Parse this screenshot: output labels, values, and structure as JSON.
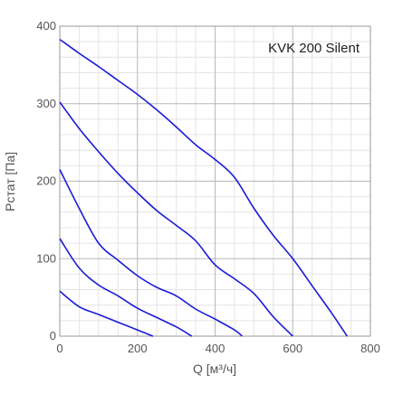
{
  "chart_data": {
    "type": "line",
    "title": "KVK 200 Silent",
    "xlabel": "Q [м³/ч]",
    "ylabel": "Pстат [Па]",
    "xlim": [
      0,
      800
    ],
    "ylim": [
      0,
      400
    ],
    "xticks": [
      0,
      200,
      400,
      600,
      800
    ],
    "yticks": [
      0,
      100,
      200,
      300,
      400
    ],
    "grid": true,
    "line_color": "#1a1ad6",
    "series": [
      {
        "x": [
          0,
          50,
          100,
          150,
          200,
          250,
          300,
          350,
          400,
          450,
          500,
          550,
          600,
          650,
          700,
          740
        ],
        "y": [
          383,
          365,
          348,
          330,
          312,
          292,
          270,
          247,
          228,
          205,
          165,
          130,
          100,
          65,
          30,
          0
        ]
      },
      {
        "x": [
          0,
          50,
          100,
          150,
          200,
          250,
          300,
          350,
          400,
          450,
          500,
          550,
          600
        ],
        "y": [
          302,
          268,
          238,
          210,
          185,
          162,
          143,
          123,
          92,
          74,
          55,
          25,
          0
        ]
      },
      {
        "x": [
          0,
          50,
          100,
          150,
          200,
          250,
          300,
          350,
          400,
          450,
          470
        ],
        "y": [
          215,
          165,
          120,
          98,
          78,
          63,
          52,
          35,
          22,
          8,
          0
        ]
      },
      {
        "x": [
          0,
          50,
          100,
          150,
          200,
          250,
          300,
          340
        ],
        "y": [
          126,
          88,
          66,
          52,
          36,
          24,
          12,
          0
        ]
      },
      {
        "x": [
          0,
          50,
          100,
          150,
          200,
          240
        ],
        "y": [
          58,
          38,
          28,
          18,
          8,
          0
        ]
      }
    ]
  }
}
